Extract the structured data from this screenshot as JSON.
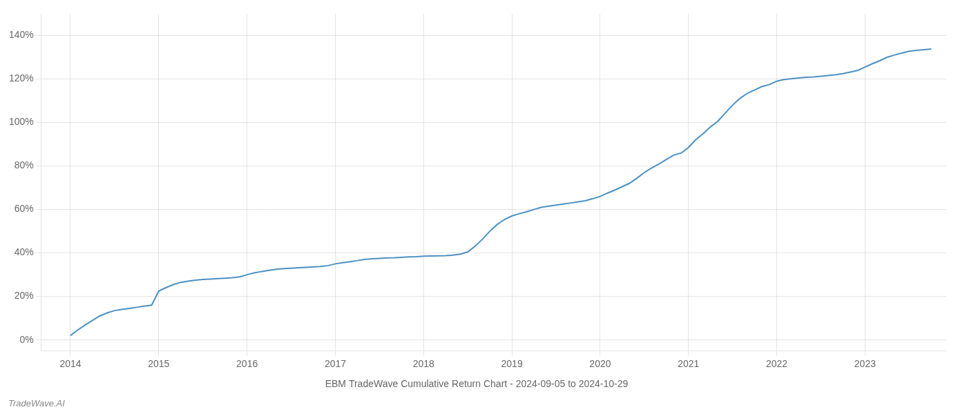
{
  "chart_data": {
    "type": "line",
    "title": "EBM TradeWave Cumulative Return Chart - 2024-09-05 to 2024-10-29",
    "annotations": [
      "TradeWave.AI"
    ],
    "color": "#4a90c4",
    "grid": true,
    "x": [
      2014.0,
      2014.08,
      2014.17,
      2014.25,
      2014.33,
      2014.42,
      2014.5,
      2014.58,
      2014.67,
      2014.75,
      2014.83,
      2014.92,
      2015.0,
      2015.08,
      2015.17,
      2015.25,
      2015.33,
      2015.42,
      2015.5,
      2015.58,
      2015.67,
      2015.75,
      2015.83,
      2015.92,
      2016.0,
      2016.08,
      2016.17,
      2016.25,
      2016.33,
      2016.42,
      2016.5,
      2016.58,
      2016.67,
      2016.75,
      2016.83,
      2016.92,
      2017.0,
      2017.08,
      2017.17,
      2017.25,
      2017.33,
      2017.42,
      2017.5,
      2017.58,
      2017.67,
      2017.75,
      2017.83,
      2017.92,
      2018.0,
      2018.08,
      2018.17,
      2018.25,
      2018.33,
      2018.42,
      2018.5,
      2018.58,
      2018.67,
      2018.75,
      2018.83,
      2018.92,
      2019.0,
      2019.08,
      2019.17,
      2019.25,
      2019.33,
      2019.42,
      2019.5,
      2019.58,
      2019.67,
      2019.75,
      2019.83,
      2019.92,
      2020.0,
      2020.08,
      2020.17,
      2020.25,
      2020.33,
      2020.42,
      2020.5,
      2020.58,
      2020.67,
      2020.75,
      2020.83,
      2020.92,
      2021.0,
      2021.08,
      2021.17,
      2021.25,
      2021.33,
      2021.42,
      2021.5,
      2021.58,
      2021.67,
      2021.75,
      2021.83,
      2021.92,
      2022.0,
      2022.08,
      2022.17,
      2022.25,
      2022.33,
      2022.42,
      2022.5,
      2022.58,
      2022.67,
      2022.75,
      2022.83,
      2022.92,
      2023.0,
      2023.08,
      2023.17,
      2023.25,
      2023.33,
      2023.42,
      2023.5,
      2023.58,
      2023.67,
      2023.75
    ],
    "values": [
      2.0,
      4.5,
      7.0,
      9.0,
      11.0,
      12.5,
      13.5,
      14.0,
      14.5,
      15.0,
      15.5,
      16.0,
      22.5,
      24.0,
      25.5,
      26.5,
      27.0,
      27.5,
      27.8,
      28.0,
      28.2,
      28.4,
      28.6,
      29.0,
      30.0,
      30.8,
      31.5,
      32.0,
      32.5,
      32.8,
      33.0,
      33.2,
      33.4,
      33.6,
      33.8,
      34.2,
      35.0,
      35.5,
      36.0,
      36.5,
      37.0,
      37.3,
      37.5,
      37.7,
      37.8,
      38.0,
      38.2,
      38.3,
      38.5,
      38.6,
      38.7,
      38.8,
      39.0,
      39.5,
      40.5,
      43.0,
      46.5,
      50.0,
      53.0,
      55.5,
      57.0,
      58.0,
      59.0,
      60.0,
      61.0,
      61.5,
      62.0,
      62.5,
      63.0,
      63.5,
      64.0,
      65.0,
      66.0,
      67.5,
      69.0,
      70.5,
      72.0,
      74.5,
      77.0,
      79.0,
      81.0,
      83.0,
      85.0,
      86.0,
      88.5,
      92.0,
      95.0,
      98.0,
      100.5,
      104.5,
      108.0,
      111.0,
      113.5,
      115.0,
      116.5,
      117.5,
      119.0,
      119.8,
      120.2,
      120.5,
      120.8,
      121.0,
      121.3,
      121.6,
      122.0,
      122.5,
      123.2,
      124.0,
      125.5,
      127.0,
      128.5,
      130.0,
      131.0,
      132.0,
      132.8,
      133.2,
      133.5,
      133.8
    ],
    "xlim": [
      2013.67,
      2023.92
    ],
    "ylim": [
      -5,
      150
    ],
    "xticks": [
      2014,
      2015,
      2016,
      2017,
      2018,
      2019,
      2020,
      2021,
      2022,
      2023
    ],
    "yticks": [
      {
        "value": 0,
        "label": "0%"
      },
      {
        "value": 20,
        "label": "20%"
      },
      {
        "value": 40,
        "label": "40%"
      },
      {
        "value": 60,
        "label": "60%"
      },
      {
        "value": 80,
        "label": "80%"
      },
      {
        "value": 100,
        "label": "100%"
      },
      {
        "value": 120,
        "label": "120%"
      },
      {
        "value": 140,
        "label": "140%"
      }
    ]
  }
}
